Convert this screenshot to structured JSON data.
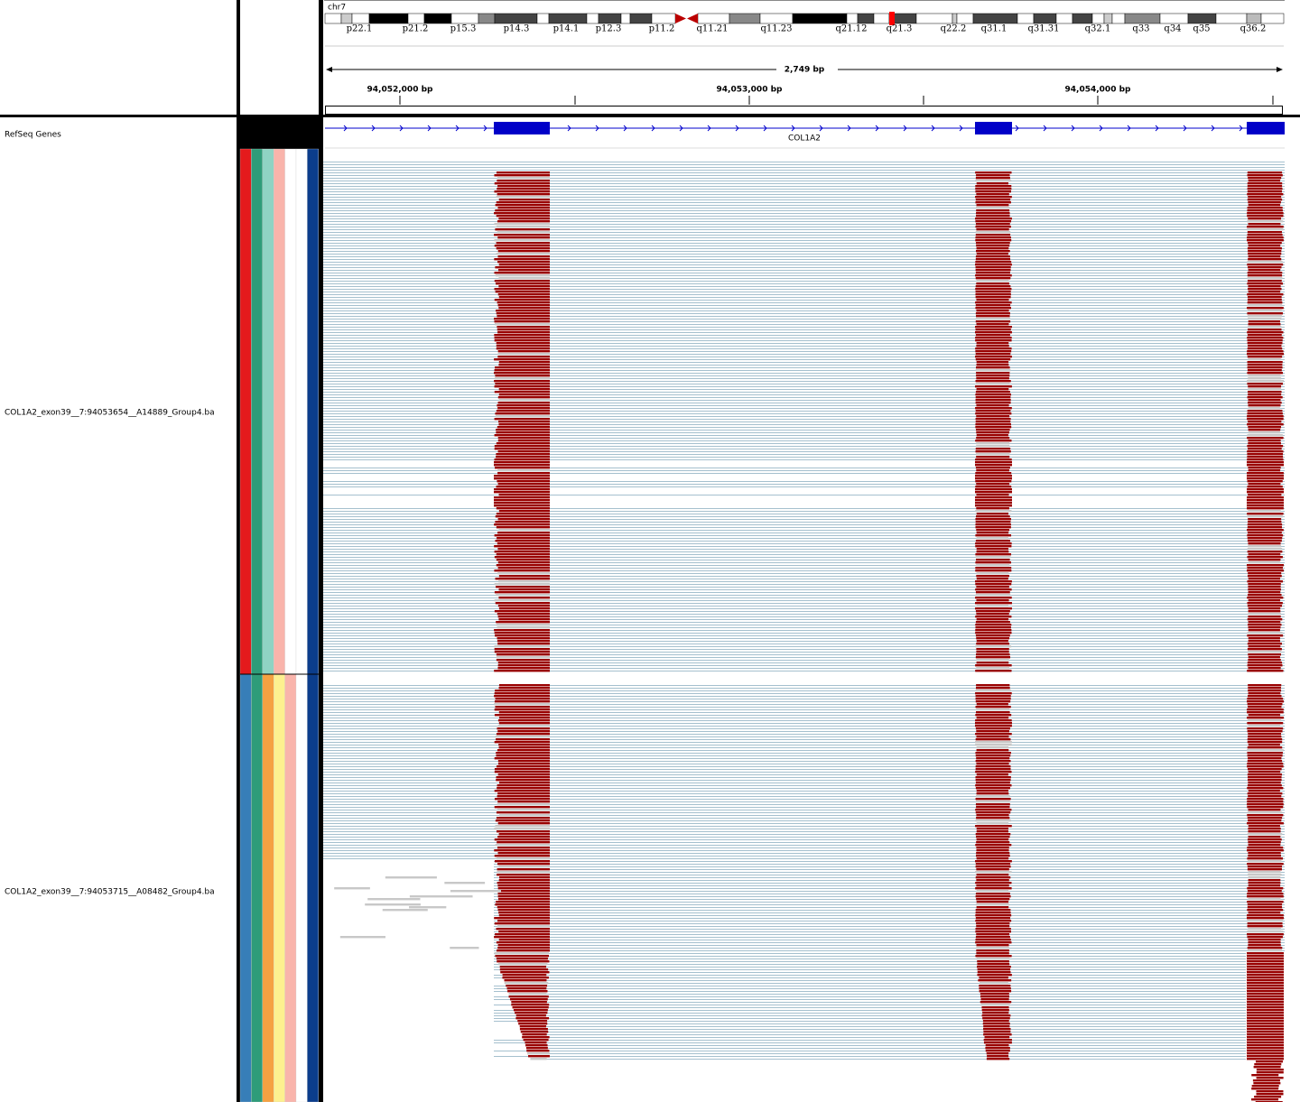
{
  "header": {
    "chromosome": "chr7",
    "cytobands": [
      "p22.1",
      "p21.2",
      "p15.3",
      "p14.3",
      "p14.1",
      "p12.3",
      "p11.2",
      "q11.21",
      "q11.23",
      "q21.12",
      "q21.3",
      "q22.2",
      "q31.1",
      "q31.31",
      "q32.1",
      "q33",
      "q34",
      "q35",
      "q36.2"
    ],
    "span": "2,749 bp",
    "ruler_labels": [
      "94,052,000 bp",
      "94,053,000 bp",
      "94,054,000 bp"
    ]
  },
  "tracks": {
    "genes": {
      "name": "RefSeq Genes",
      "gene": "COL1A2"
    },
    "alignments": [
      {
        "name": "COL1A2_exon39__7:94053654__A14889_Group4.ba"
      },
      {
        "name": "COL1A2_exon39__7:94053715__A08482_Group4.ba"
      }
    ]
  }
}
